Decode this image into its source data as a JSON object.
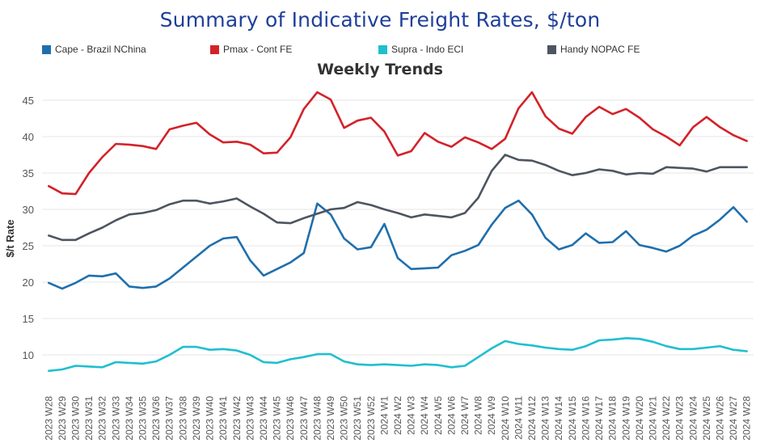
{
  "header": {
    "title": "Summary of Indicative Freight Rates, $/ton"
  },
  "legend": [
    {
      "label": "Cape - Brazil NChina",
      "color": "#1f6fad"
    },
    {
      "label": "Pmax - Cont FE",
      "color": "#d3222a"
    },
    {
      "label": "Supra - Indo ECI",
      "color": "#1fbfcf"
    },
    {
      "label": "Handy NOPAC FE",
      "color": "#4d5560"
    }
  ],
  "chart_data": {
    "type": "line",
    "title": "Weekly Trends",
    "xlabel": "",
    "ylabel": "$/t Rate",
    "ylim": [
      5,
      47
    ],
    "yticks": [
      10,
      15,
      20,
      25,
      30,
      35,
      40,
      45
    ],
    "grid": true,
    "legend_position": "top",
    "x": [
      "2023 W28",
      "2023 W29",
      "2023 W30",
      "2023 W31",
      "2023 W32",
      "2023 W33",
      "2023 W34",
      "2023 W35",
      "2023 W36",
      "2023 W37",
      "2023 W38",
      "2023 W39",
      "2023 W40",
      "2023 W41",
      "2023 W42",
      "2023 W43",
      "2023 W44",
      "2023 W45",
      "2023 W46",
      "2023 W47",
      "2023 W48",
      "2023 W49",
      "2023 W50",
      "2023 W51",
      "2023 W52",
      "2024 W1",
      "2024 W2",
      "2024 W3",
      "2024 W4",
      "2024 W5",
      "2024 W6",
      "2024 W7",
      "2024 W8",
      "2024 W9",
      "2024 W10",
      "2024 W11",
      "2024 W12",
      "2024 W13",
      "2024 W14",
      "2024 W15",
      "2024 W16",
      "2024 W17",
      "2024 W18",
      "2024 W19",
      "2024 W20",
      "2024 W21",
      "2024 W22",
      "2024 W23",
      "2024 W24",
      "2024 W25",
      "2024 W26",
      "2024 W27",
      "2024 W28"
    ],
    "series": [
      {
        "name": "Cape - Brazil NChina",
        "color": "#1f6fad",
        "values": [
          19.9,
          19.1,
          19.9,
          20.9,
          20.8,
          21.2,
          19.4,
          19.2,
          19.4,
          20.5,
          22.0,
          23.5,
          25.0,
          26.0,
          26.2,
          23.0,
          20.9,
          21.8,
          22.7,
          24.0,
          30.8,
          29.3,
          26.0,
          24.5,
          24.8,
          28.0,
          23.3,
          21.8,
          21.9,
          22.0,
          23.7,
          24.3,
          25.1,
          27.9,
          30.2,
          31.2,
          29.3,
          26.1,
          24.5,
          25.1,
          26.7,
          25.4,
          25.5,
          27.0,
          25.1,
          24.7,
          24.2,
          25.0,
          26.4,
          27.2,
          28.6,
          30.3,
          28.3
        ]
      },
      {
        "name": "Pmax - Cont FE",
        "color": "#d3222a",
        "values": [
          33.2,
          32.2,
          32.1,
          35.0,
          37.2,
          39.0,
          38.9,
          38.7,
          38.3,
          41.0,
          41.5,
          41.9,
          40.3,
          39.2,
          39.3,
          38.9,
          37.7,
          37.8,
          39.9,
          43.8,
          46.1,
          45.1,
          41.2,
          42.2,
          42.6,
          40.7,
          37.4,
          38.0,
          40.5,
          39.3,
          38.6,
          39.9,
          39.2,
          38.3,
          39.7,
          43.9,
          46.1,
          42.8,
          41.1,
          40.4,
          42.7,
          44.1,
          43.1,
          43.8,
          42.6,
          41.0,
          40.0,
          38.8,
          41.3,
          42.7,
          41.3,
          40.2,
          39.4
        ]
      },
      {
        "name": "Supra - Indo ECI",
        "color": "#1fbfcf",
        "values": [
          7.8,
          8.0,
          8.5,
          8.4,
          8.3,
          9.0,
          8.9,
          8.8,
          9.1,
          10.0,
          11.1,
          11.1,
          10.7,
          10.8,
          10.6,
          10.0,
          9.0,
          8.9,
          9.4,
          9.7,
          10.1,
          10.1,
          9.1,
          8.7,
          8.6,
          8.7,
          8.6,
          8.5,
          8.7,
          8.6,
          8.3,
          8.5,
          9.7,
          10.9,
          11.9,
          11.5,
          11.3,
          11.0,
          10.8,
          10.7,
          11.2,
          12.0,
          12.1,
          12.3,
          12.2,
          11.8,
          11.2,
          10.8,
          10.8,
          11.0,
          11.2,
          10.7,
          10.5
        ]
      },
      {
        "name": "Handy NOPAC FE",
        "color": "#4d5560",
        "values": [
          26.4,
          25.8,
          25.8,
          26.7,
          27.5,
          28.5,
          29.3,
          29.5,
          29.9,
          30.7,
          31.2,
          31.2,
          30.8,
          31.1,
          31.5,
          30.4,
          29.4,
          28.2,
          28.1,
          28.8,
          29.4,
          30.0,
          30.2,
          31.0,
          30.6,
          30.0,
          29.5,
          28.9,
          29.3,
          29.1,
          28.9,
          29.5,
          31.6,
          35.3,
          37.5,
          36.8,
          36.7,
          36.1,
          35.3,
          34.7,
          35.0,
          35.5,
          35.3,
          34.8,
          35.0,
          34.9,
          35.8,
          35.7,
          35.6,
          35.2,
          35.8,
          35.8,
          35.8
        ]
      }
    ]
  }
}
